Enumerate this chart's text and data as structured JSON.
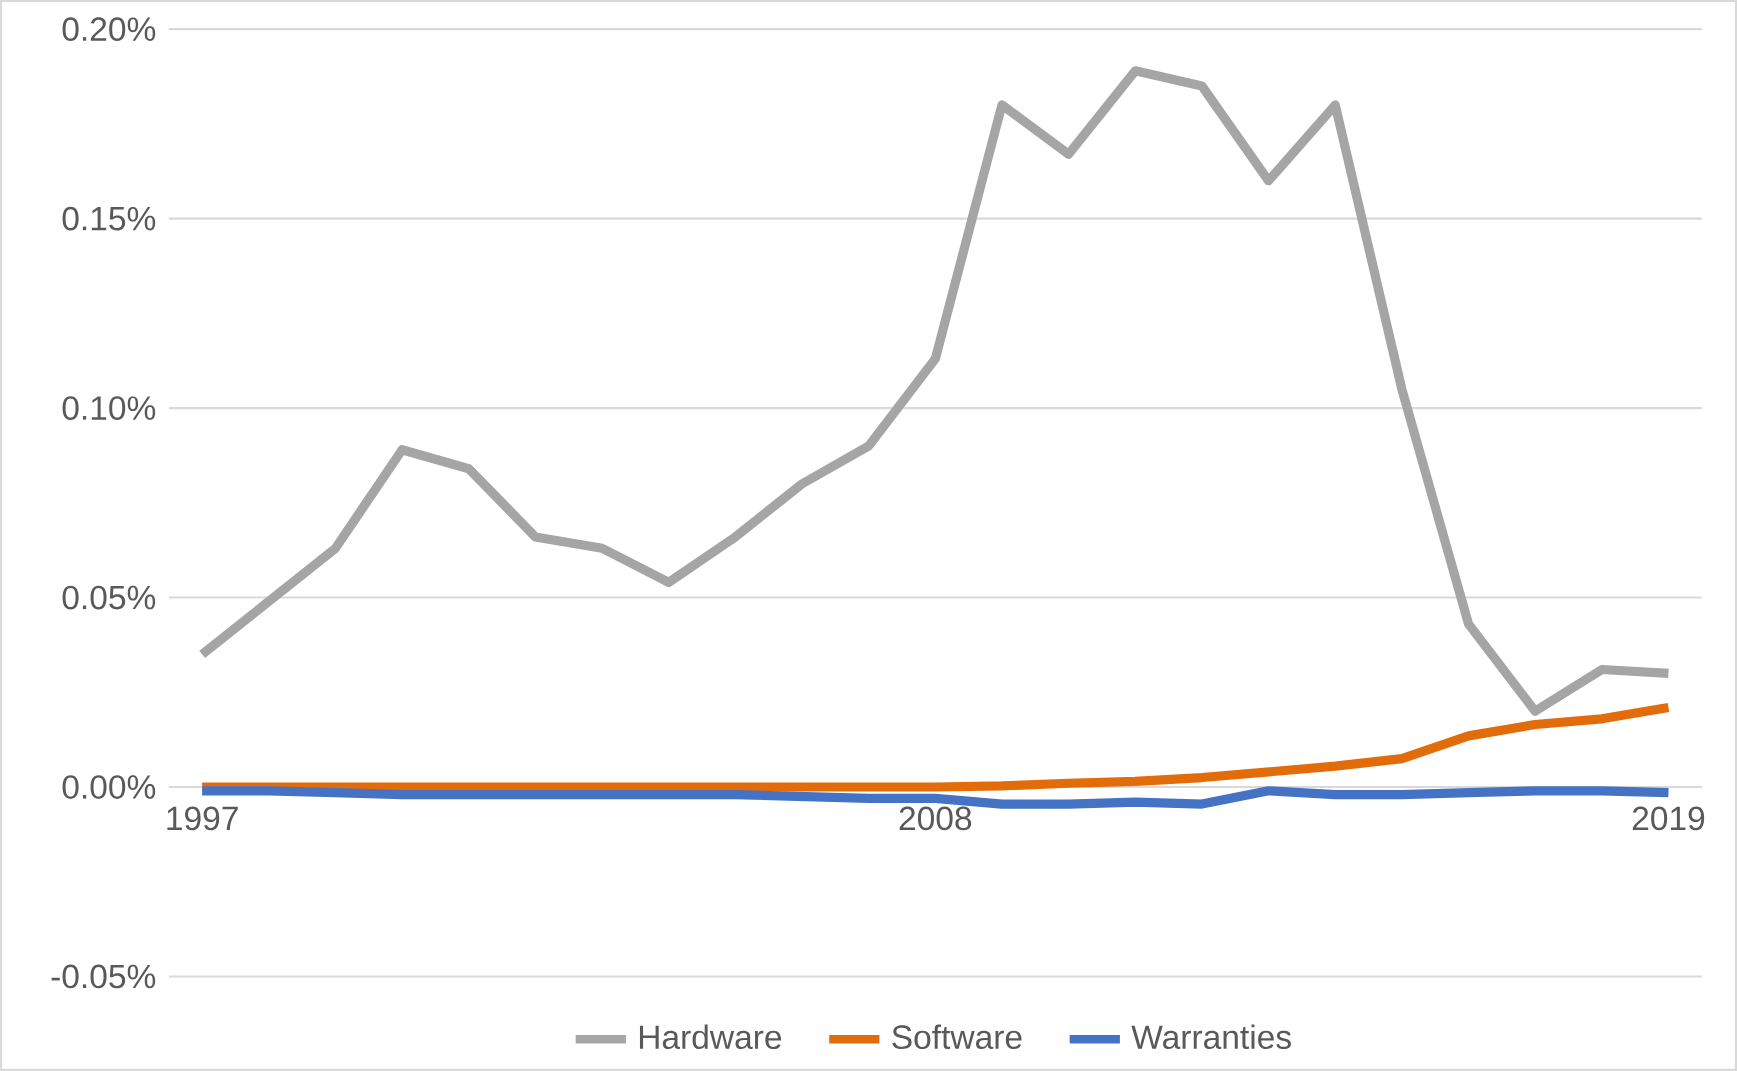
{
  "chart_data": {
    "type": "line",
    "x": [
      1997,
      1998,
      1999,
      2000,
      2001,
      2002,
      2003,
      2004,
      2005,
      2006,
      2007,
      2008,
      2009,
      2010,
      2011,
      2012,
      2013,
      2014,
      2015,
      2016,
      2017,
      2018,
      2019
    ],
    "series": [
      {
        "name": "Hardware",
        "color": "#a5a5a5",
        "values": [
          0.035,
          0.049,
          0.063,
          0.089,
          0.084,
          0.066,
          0.063,
          0.054,
          0.066,
          0.08,
          0.09,
          0.113,
          0.18,
          0.167,
          0.189,
          0.185,
          0.16,
          0.18,
          0.105,
          0.043,
          0.02,
          0.031,
          0.03
        ]
      },
      {
        "name": "Software",
        "color": "#e36c0a",
        "values": [
          0.0,
          0.0,
          0.0,
          0.0,
          0.0,
          0.0,
          0.0,
          0.0,
          0.0,
          0.0,
          0.0,
          0.0,
          0.0003,
          0.001,
          0.0015,
          0.0025,
          0.004,
          0.0055,
          0.0075,
          0.0135,
          0.0165,
          0.018,
          0.021
        ]
      },
      {
        "name": "Warranties",
        "color": "#4472c4",
        "values": [
          -0.001,
          -0.001,
          -0.0015,
          -0.002,
          -0.002,
          -0.002,
          -0.002,
          -0.002,
          -0.002,
          -0.0025,
          -0.003,
          -0.003,
          -0.0045,
          -0.0045,
          -0.004,
          -0.0045,
          -0.001,
          -0.002,
          -0.002,
          -0.0015,
          -0.001,
          -0.001,
          -0.0015
        ]
      }
    ],
    "xlim": [
      1996.5,
      2019.5
    ],
    "xticks": [
      1997,
      2008,
      2019
    ],
    "ylim": [
      -0.05,
      0.2
    ],
    "yticks": [
      {
        "value": -0.05,
        "label": "-0.05%"
      },
      {
        "value": 0,
        "label": "0.00%"
      },
      {
        "value": 0.05,
        "label": "0.05%"
      },
      {
        "value": 0.1,
        "label": "0.10%"
      },
      {
        "value": 0.15,
        "label": "0.15%"
      },
      {
        "value": 0.2,
        "label": "0.20%"
      }
    ],
    "grid": "y",
    "legend": "bottom",
    "line_style": "solid",
    "marker": "none"
  }
}
